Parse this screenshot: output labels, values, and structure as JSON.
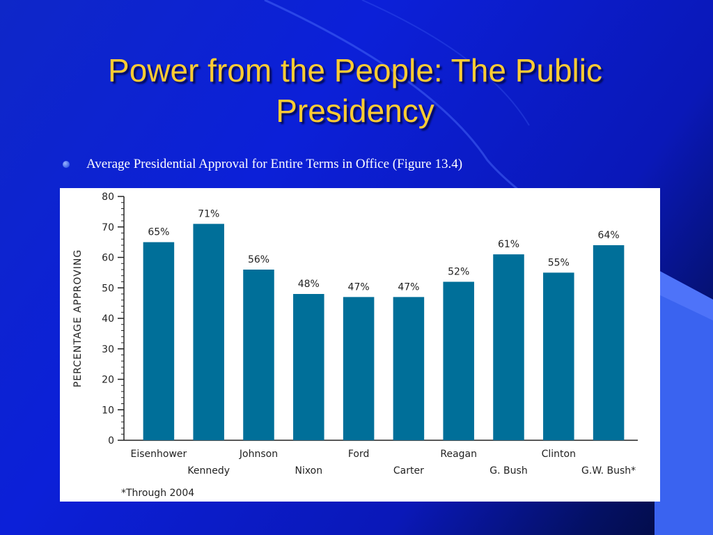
{
  "slide": {
    "title": "Power from the People: The Public Presidency",
    "bullet": "Average Presidential Approval for Entire Terms in Office (Figure 13.4)"
  },
  "colors": {
    "background": "#0c20d8",
    "title": "#ffcc33",
    "bar": "#006f99",
    "accent_blue": "#3a63f0"
  },
  "chart_data": {
    "type": "bar",
    "categories": [
      "Eisenhower",
      "Kennedy",
      "Johnson",
      "Nixon",
      "Ford",
      "Carter",
      "Reagan",
      "G. Bush",
      "Clinton",
      "G.W. Bush*"
    ],
    "values": [
      65,
      71,
      56,
      48,
      47,
      47,
      52,
      61,
      55,
      64
    ],
    "data_labels": [
      "65%",
      "71%",
      "56%",
      "48%",
      "47%",
      "47%",
      "52%",
      "61%",
      "55%",
      "64%"
    ],
    "ylabel": "PERCENTAGE APPROVING",
    "xlabel": "",
    "ylim": [
      0,
      80
    ],
    "yticks": [
      0,
      10,
      20,
      30,
      40,
      50,
      60,
      70,
      80
    ],
    "grid": false,
    "footnote": "*Through 2004"
  }
}
